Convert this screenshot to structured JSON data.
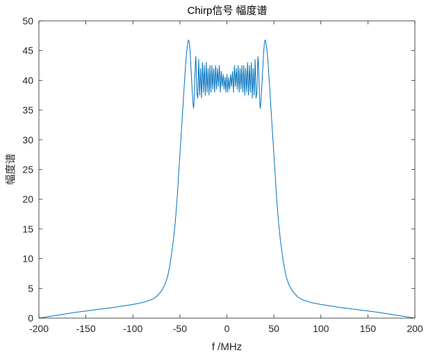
{
  "chart_data": {
    "type": "line",
    "title": "Chirp信号 幅度谱",
    "xlabel": "f /MHz",
    "ylabel": "幅度谱",
    "xlim": [
      -200,
      200
    ],
    "ylim": [
      0,
      50
    ],
    "xticks": [
      -200,
      -150,
      -100,
      -50,
      0,
      50,
      100,
      150,
      200
    ],
    "yticks": [
      0,
      5,
      10,
      15,
      20,
      25,
      30,
      35,
      40,
      45,
      50
    ],
    "grid": false,
    "line_color": "#0072BD",
    "series": [
      {
        "x": [
          -200,
          -180,
          -160,
          -140,
          -120,
          -100,
          -90,
          -80,
          -75,
          -70,
          -66,
          -63,
          -60,
          -57,
          -55,
          -53,
          -51,
          -49,
          -47,
          -45,
          -44,
          -43,
          -42,
          -41,
          -40,
          -39,
          -38,
          -37,
          -36,
          -35.5,
          -35,
          -34.5,
          -34,
          -33.5,
          -33,
          -32,
          -31,
          -30,
          -29,
          -28,
          -27,
          -26,
          -25,
          -24,
          -23,
          -22,
          -21,
          -20,
          -19,
          -18,
          -17,
          -16,
          -15,
          -14,
          -13,
          -12,
          -11,
          -10,
          -9,
          -8,
          -7,
          -6,
          -5,
          -4,
          -3,
          -2,
          -1,
          0,
          1,
          2,
          3,
          4,
          5,
          6,
          7,
          8,
          9,
          10,
          11,
          12,
          13,
          14,
          15,
          16,
          17,
          18,
          19,
          20,
          21,
          22,
          23,
          24,
          25,
          26,
          27,
          28,
          29,
          30,
          31,
          32,
          33,
          33.5,
          34,
          34.5,
          35,
          35.5,
          36,
          37,
          38,
          39,
          40,
          41,
          42,
          43,
          44,
          45,
          47,
          49,
          51,
          53,
          55,
          57,
          60,
          63,
          66,
          70,
          75,
          80,
          90,
          100,
          120,
          140,
          160,
          180,
          200
        ],
        "y": [
          0,
          0.5,
          1,
          1.4,
          1.8,
          2.3,
          2.6,
          3.1,
          3.6,
          4.5,
          5.6,
          7,
          9.5,
          13,
          16,
          20,
          25,
          30,
          35,
          40,
          42.5,
          44.5,
          45.8,
          46.8,
          46.5,
          44.5,
          41.5,
          38.5,
          36,
          35.3,
          36,
          38.5,
          41,
          43,
          44,
          38,
          37,
          43.5,
          37.5,
          42,
          37,
          43,
          38,
          42.5,
          37.5,
          43,
          38,
          42,
          37.5,
          42.5,
          38,
          42.5,
          38.5,
          42,
          38,
          42.5,
          38.5,
          42,
          39,
          42.5,
          38,
          41.5,
          39,
          41,
          38.5,
          40.5,
          38,
          41,
          38,
          40.5,
          38.5,
          41,
          39,
          41.5,
          38,
          42.5,
          39,
          42,
          38.5,
          42.5,
          38,
          42,
          38.5,
          42.5,
          38,
          42.5,
          37.5,
          42,
          38,
          43,
          37.5,
          42.5,
          38,
          43,
          37,
          42,
          37.5,
          43.5,
          37,
          38,
          44,
          43,
          41,
          38.5,
          36,
          35.3,
          36,
          38.5,
          41.5,
          44.5,
          46.5,
          46.8,
          45.8,
          44.5,
          42.5,
          40,
          35,
          30,
          25,
          20,
          16,
          13,
          9.5,
          7,
          5.6,
          4.5,
          3.6,
          3.1,
          2.6,
          2.3,
          1.8,
          1.4,
          1,
          0.5,
          0
        ]
      }
    ]
  }
}
